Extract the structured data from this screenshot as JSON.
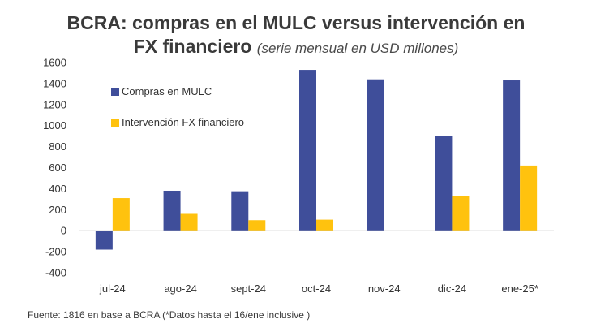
{
  "title": {
    "line1": "BCRA: compras en el MULC versus intervención en",
    "line2_main": "FX financiero",
    "line2_sub": "(serie mensual en USD millones)"
  },
  "source": "Fuente: 1816 en base a BCRA (*Datos hasta el 16/ene inclusive )",
  "colors": {
    "compras": "#3f4e9a",
    "intervencion": "#ffc20e",
    "axis": "#bfbfbf"
  },
  "chart_data": {
    "type": "bar",
    "categories": [
      "jul-24",
      "ago-24",
      "sept-24",
      "oct-24",
      "nov-24",
      "dic-24",
      "ene-25*"
    ],
    "series": [
      {
        "name": "Compras en MULC",
        "values": [
          -180,
          380,
          375,
          1530,
          1440,
          900,
          1430
        ]
      },
      {
        "name": "Intervención FX financiero",
        "values": [
          310,
          160,
          100,
          105,
          0,
          330,
          620
        ]
      }
    ],
    "y_ticks": [
      "1600",
      "1400",
      "1200",
      "1000",
      "800",
      "600",
      "400",
      "200",
      "0",
      "-200",
      "-400"
    ],
    "ylim": [
      -400,
      1600
    ],
    "grid": false,
    "legend_position": "upper-left, inside plot"
  }
}
